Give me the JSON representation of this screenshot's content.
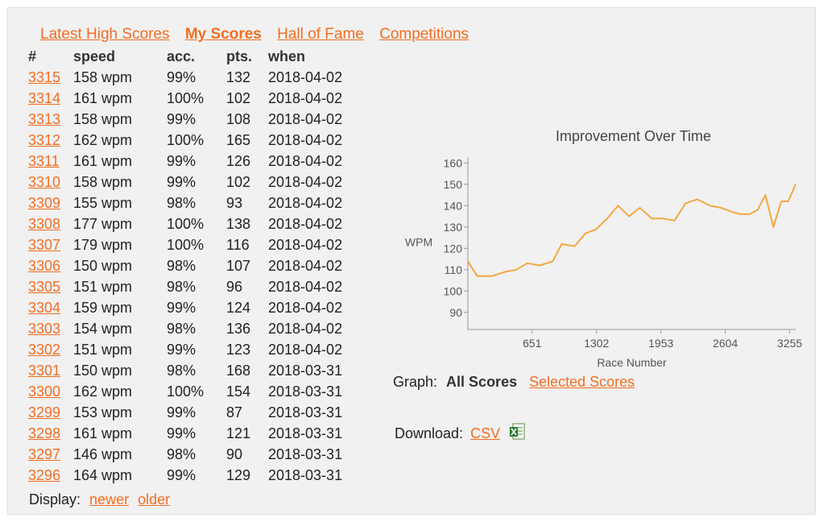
{
  "tabs": [
    {
      "label": "Latest High Scores",
      "active": false
    },
    {
      "label": "My Scores",
      "active": true
    },
    {
      "label": "Hall of Fame",
      "active": false
    },
    {
      "label": "Competitions",
      "active": false
    }
  ],
  "table": {
    "headers": [
      "#",
      "speed",
      "acc.",
      "pts.",
      "when"
    ],
    "rows": [
      [
        "3315",
        "158 wpm",
        "99%",
        "132",
        "2018-04-02"
      ],
      [
        "3314",
        "161 wpm",
        "100%",
        "102",
        "2018-04-02"
      ],
      [
        "3313",
        "158 wpm",
        "99%",
        "108",
        "2018-04-02"
      ],
      [
        "3312",
        "162 wpm",
        "100%",
        "165",
        "2018-04-02"
      ],
      [
        "3311",
        "161 wpm",
        "99%",
        "126",
        "2018-04-02"
      ],
      [
        "3310",
        "158 wpm",
        "99%",
        "102",
        "2018-04-02"
      ],
      [
        "3309",
        "155 wpm",
        "98%",
        "93",
        "2018-04-02"
      ],
      [
        "3308",
        "177 wpm",
        "100%",
        "138",
        "2018-04-02"
      ],
      [
        "3307",
        "179 wpm",
        "100%",
        "116",
        "2018-04-02"
      ],
      [
        "3306",
        "150 wpm",
        "98%",
        "107",
        "2018-04-02"
      ],
      [
        "3305",
        "151 wpm",
        "98%",
        "96",
        "2018-04-02"
      ],
      [
        "3304",
        "159 wpm",
        "99%",
        "124",
        "2018-04-02"
      ],
      [
        "3303",
        "154 wpm",
        "98%",
        "136",
        "2018-04-02"
      ],
      [
        "3302",
        "151 wpm",
        "99%",
        "123",
        "2018-04-02"
      ],
      [
        "3301",
        "150 wpm",
        "98%",
        "168",
        "2018-03-31"
      ],
      [
        "3300",
        "162 wpm",
        "100%",
        "154",
        "2018-03-31"
      ],
      [
        "3299",
        "153 wpm",
        "99%",
        "87",
        "2018-03-31"
      ],
      [
        "3298",
        "161 wpm",
        "99%",
        "121",
        "2018-03-31"
      ],
      [
        "3297",
        "146 wpm",
        "98%",
        "90",
        "2018-03-31"
      ],
      [
        "3296",
        "164 wpm",
        "99%",
        "129",
        "2018-03-31"
      ]
    ]
  },
  "display": {
    "label": "Display:",
    "newer": "newer",
    "older": "older"
  },
  "graph": {
    "label": "Graph:",
    "all": "All Scores",
    "selected": "Selected Scores"
  },
  "download": {
    "label": "Download:",
    "csv": "CSV",
    "icon": "excel-icon"
  },
  "colors": {
    "accent": "#f26d21",
    "line": "#f5a742",
    "panel": "#f1f1f1"
  },
  "chart_data": {
    "type": "line",
    "title": "Improvement Over Time",
    "xlabel": "Race Number",
    "ylabel": "WPM",
    "xlim": [
      1,
      3315
    ],
    "ylim": [
      82,
      162
    ],
    "xticks": [
      651,
      1302,
      1953,
      2604,
      3255
    ],
    "yticks": [
      90,
      100,
      110,
      120,
      130,
      140,
      150,
      160
    ],
    "grid": false,
    "series": [
      {
        "x": [
          1,
          95,
          240,
          380,
          490,
          600,
          730,
          860,
          950,
          1080,
          1190,
          1300,
          1410,
          1520,
          1630,
          1740,
          1860,
          1970,
          2090,
          2200,
          2320,
          2450,
          2560,
          2680,
          2760,
          2850,
          2930,
          3010,
          3090,
          3170,
          3240,
          3315
        ],
        "y": [
          114,
          107,
          107,
          109,
          110,
          113,
          112,
          114,
          122,
          121,
          127,
          129,
          134,
          140,
          135,
          139,
          134,
          134,
          133,
          141,
          143,
          140,
          139,
          137,
          136,
          136,
          138,
          145,
          130,
          142,
          142,
          150
        ]
      }
    ]
  }
}
